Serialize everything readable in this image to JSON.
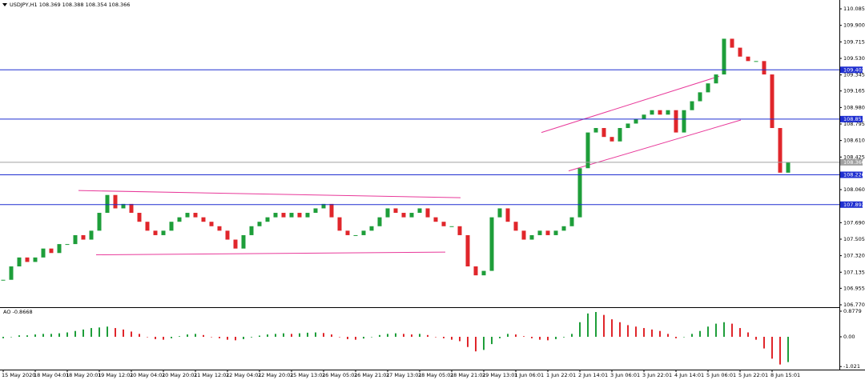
{
  "chart_data": [
    {
      "type": "candlestick",
      "title": "USDJPY,H1 108.369 108.388 108.354 108.366",
      "categories": [
        "15 May 2020",
        null,
        null,
        null,
        "18 May 04:01",
        null,
        null,
        null,
        "18 May 20:01",
        null,
        null,
        null,
        "19 May 12:01",
        null,
        null,
        null,
        "20 May 04:01",
        null,
        null,
        null,
        "20 May 20:01",
        null,
        null,
        null,
        "21 May 12:01",
        null,
        null,
        null,
        "22 May 04:01",
        null,
        null,
        null,
        "22 May 20:01",
        null,
        null,
        null,
        "25 May 13:01",
        null,
        null,
        null,
        "26 May 05:01",
        null,
        null,
        null,
        "26 May 21:01",
        null,
        null,
        null,
        "27 May 13:01",
        null,
        null,
        null,
        "28 May 05:01",
        null,
        null,
        null,
        "28 May 21:01",
        null,
        null,
        null,
        "29 May 13:01",
        null,
        null,
        null,
        "1 Jun 06:01",
        null,
        null,
        null,
        "1 Jun 22:01",
        null,
        null,
        null,
        "2 Jun 14:01",
        null,
        null,
        null,
        "3 Jun 06:01",
        null,
        null,
        null,
        "3 Jun 22:01",
        null,
        null,
        null,
        "4 Jun 14:01",
        null,
        null,
        null,
        "5 Jun 06:01",
        null,
        null,
        null,
        "5 Jun 22:01",
        null,
        null,
        null,
        "8 Jun 15:01",
        null,
        null
      ],
      "close": [
        107.05,
        107.2,
        107.3,
        107.25,
        107.3,
        107.4,
        107.35,
        107.45,
        107.45,
        107.55,
        107.5,
        107.6,
        107.8,
        108.0,
        107.85,
        107.9,
        107.8,
        107.7,
        107.6,
        107.55,
        107.6,
        107.7,
        107.75,
        107.8,
        107.75,
        107.7,
        107.65,
        107.6,
        107.5,
        107.4,
        107.55,
        107.65,
        107.7,
        107.75,
        107.8,
        107.75,
        107.8,
        107.75,
        107.8,
        107.85,
        107.9,
        107.75,
        107.6,
        107.55,
        107.55,
        107.6,
        107.65,
        107.75,
        107.85,
        107.8,
        107.75,
        107.8,
        107.85,
        107.75,
        107.7,
        107.65,
        107.65,
        107.55,
        107.2,
        107.1,
        107.15,
        107.75,
        107.85,
        107.7,
        107.6,
        107.5,
        107.55,
        107.6,
        107.55,
        107.6,
        107.65,
        107.75,
        108.3,
        108.7,
        108.75,
        108.65,
        108.6,
        108.75,
        108.8,
        108.85,
        108.9,
        108.95,
        108.9,
        108.95,
        108.7,
        108.95,
        109.05,
        109.15,
        109.25,
        109.35,
        109.75,
        109.65,
        109.55,
        109.5,
        109.5,
        109.35,
        108.75,
        108.25,
        108.366
      ],
      "up_color": "#1e9e3a",
      "down_color": "#e0262b",
      "ylim": [
        106.743,
        110.184
      ],
      "yticks": [
        110.085,
        {
          "value": 109.9,
          "label": "109.900"
        },
        109.715,
        {
          "value": 109.53,
          "label": "109.530"
        },
        109.345,
        109.165,
        {
          "value": 108.98,
          "label": "108.980"
        },
        108.795,
        {
          "value": 108.61,
          "label": "108.610"
        },
        108.425,
        {
          "value": 108.06,
          "label": "108.060"
        },
        {
          "value": 107.69,
          "label": "107.690"
        },
        107.505,
        {
          "value": 107.32,
          "label": "107.320"
        },
        107.135,
        106.955,
        {
          "value": 106.77,
          "label": "106.770"
        }
      ],
      "hlines": [
        {
          "value": 109.402,
          "color": "#1f2fd0"
        },
        {
          "value": 108.85,
          "color": "#1f2fd0"
        },
        {
          "value": 108.366,
          "color": "#a0a0a0"
        },
        {
          "value": 108.226,
          "color": "#1f2fd0"
        },
        {
          "value": 107.892,
          "color": "#1f2fd0"
        }
      ],
      "trendlines": [
        {
          "x": [
            9.4,
            57.1
          ],
          "y": [
            108.05,
            107.97
          ]
        },
        {
          "x": [
            11.6,
            55.2
          ],
          "y": [
            107.33,
            107.36
          ]
        },
        {
          "x": [
            67.2,
            89.4
          ],
          "y": [
            108.7,
            109.33
          ]
        },
        {
          "x": [
            70.6,
            92.1
          ],
          "y": [
            108.27,
            108.84
          ]
        }
      ],
      "trend_color": "#e8399a"
    },
    {
      "type": "bar",
      "title": "AO -0.8668",
      "values": [
        -0.05,
        0.0,
        0.05,
        0.05,
        0.08,
        0.1,
        0.1,
        0.12,
        0.15,
        0.2,
        0.25,
        0.3,
        0.32,
        0.35,
        0.3,
        0.25,
        0.18,
        0.1,
        0.0,
        -0.08,
        -0.1,
        -0.05,
        0.02,
        0.08,
        0.1,
        0.06,
        0.0,
        -0.05,
        -0.1,
        -0.12,
        -0.08,
        -0.02,
        0.04,
        0.08,
        0.1,
        0.12,
        0.1,
        0.12,
        0.14,
        0.15,
        0.13,
        0.08,
        0.0,
        -0.08,
        -0.1,
        -0.06,
        0.0,
        0.06,
        0.1,
        0.12,
        0.1,
        0.08,
        0.1,
        0.06,
        0.0,
        -0.05,
        -0.1,
        -0.15,
        -0.35,
        -0.5,
        -0.45,
        -0.25,
        -0.05,
        0.1,
        0.08,
        0.02,
        -0.05,
        -0.1,
        -0.12,
        -0.08,
        -0.02,
        0.1,
        0.5,
        0.8,
        0.85,
        0.75,
        0.6,
        0.5,
        0.4,
        0.35,
        0.3,
        0.25,
        0.2,
        0.1,
        -0.05,
        0.0,
        0.1,
        0.2,
        0.35,
        0.45,
        0.5,
        0.45,
        0.3,
        0.15,
        -0.1,
        -0.4,
        -0.75,
        -0.95,
        -0.8668
      ],
      "up_color": "#1e9e3a",
      "down_color": "#e0262b",
      "ylim": [
        -1.125,
        1.015
      ],
      "yticks": [
        0.8779,
        {
          "value": 0,
          "label": "0.00"
        },
        -1.021
      ]
    }
  ]
}
